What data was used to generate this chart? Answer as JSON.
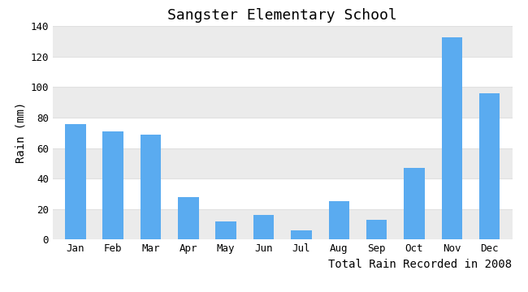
{
  "title": "Sangster Elementary School",
  "xlabel": "Total Rain Recorded in 2008",
  "ylabel": "Rain (mm)",
  "months": [
    "Jan",
    "Feb",
    "Mar",
    "Apr",
    "May",
    "Jun",
    "Jul",
    "Aug",
    "Sep",
    "Oct",
    "Nov",
    "Dec"
  ],
  "values": [
    76,
    71,
    69,
    28,
    12,
    16,
    6,
    25,
    13,
    47,
    133,
    96
  ],
  "bar_color": "#5aabf0",
  "ylim": [
    0,
    140
  ],
  "yticks": [
    0,
    20,
    40,
    60,
    80,
    100,
    120,
    140
  ],
  "background_color": "#ffffff",
  "plot_background": "#ffffff",
  "band_color1": "#ffffff",
  "band_color2": "#ebebeb",
  "grid_color": "#e0e0e0",
  "title_fontsize": 13,
  "label_fontsize": 10,
  "tick_fontsize": 9,
  "font_family": "monospace"
}
